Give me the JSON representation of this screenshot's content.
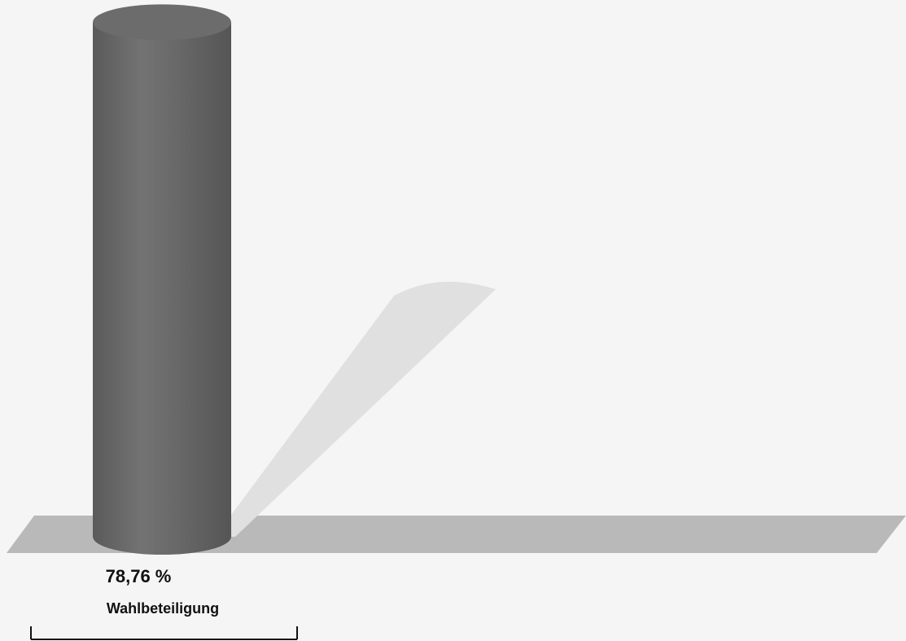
{
  "chart_data": {
    "type": "bar",
    "style": "3d-cylinder",
    "categories": [
      "Wahlbeteiligung"
    ],
    "values": [
      78.76
    ],
    "value_labels": [
      "78,76 %"
    ],
    "ylim": [
      0,
      100
    ],
    "grid": false,
    "legend": "none",
    "colors": {
      "background": "#f5f5f5",
      "floor": "#b9b9b9",
      "bar": "#6e6e6e",
      "shadow": "#e0e0e0"
    }
  }
}
